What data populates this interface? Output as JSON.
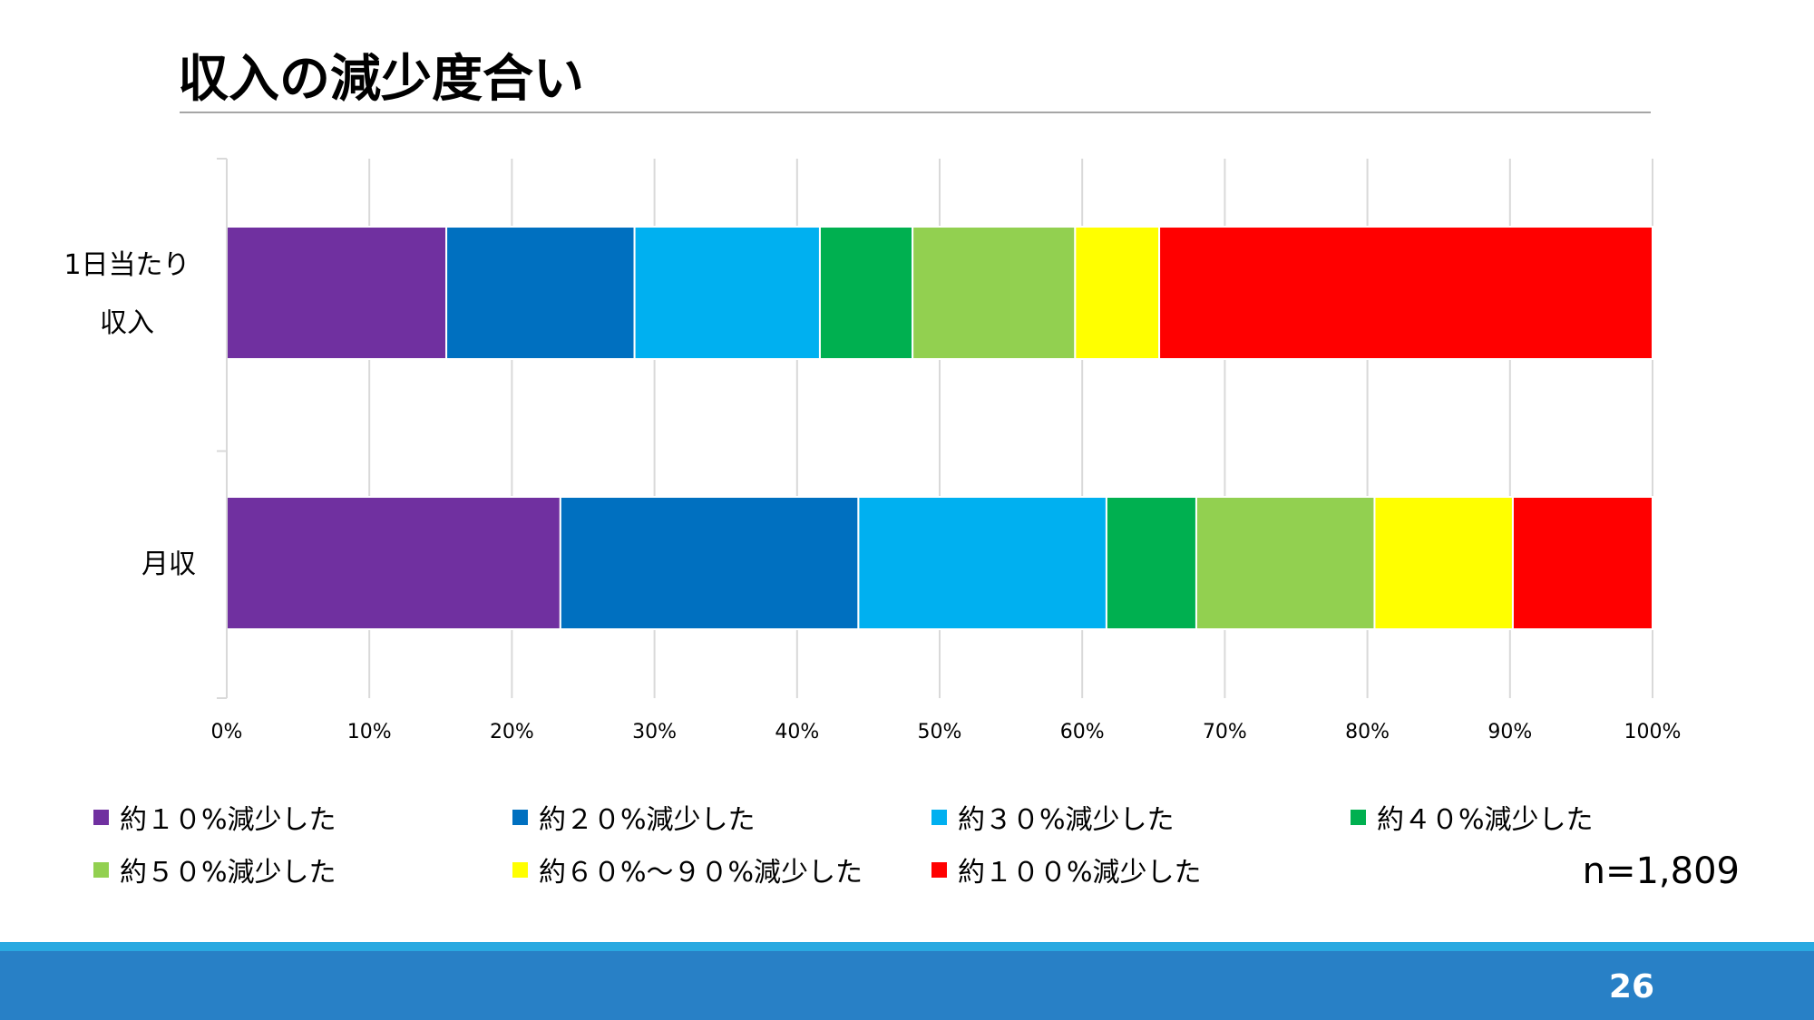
{
  "slide": {
    "title": "収入の減少度合い",
    "sample_size": "n=1,809",
    "page_number": "26"
  },
  "chart_data": {
    "type": "bar",
    "orientation": "horizontal",
    "stacked": "percent",
    "categories": [
      "1日当たり\n収入",
      "月収"
    ],
    "series": [
      {
        "name": "約１０%減少した",
        "color": "#7030a0",
        "values": [
          15.4,
          23.4
        ]
      },
      {
        "name": "約２０%減少した",
        "color": "#0070c0",
        "values": [
          13.2,
          20.9
        ]
      },
      {
        "name": "約３０%減少した",
        "color": "#00b0f0",
        "values": [
          13.0,
          17.4
        ]
      },
      {
        "name": "約４０%減少した",
        "color": "#00b050",
        "values": [
          6.5,
          6.3
        ]
      },
      {
        "name": "約５０%減少した",
        "color": "#92d050",
        "values": [
          11.4,
          12.5
        ]
      },
      {
        "name": "約６０%～９０%減少した",
        "color": "#ffff00",
        "values": [
          5.9,
          9.7
        ]
      },
      {
        "name": "約１００%減少した",
        "color": "#ff0000",
        "values": [
          34.6,
          9.8
        ]
      }
    ],
    "xlim": [
      0,
      100
    ],
    "xticks": [
      "0%",
      "10%",
      "20%",
      "30%",
      "40%",
      "50%",
      "60%",
      "70%",
      "80%",
      "90%",
      "100%"
    ],
    "grid": true,
    "legend": "bottom"
  }
}
